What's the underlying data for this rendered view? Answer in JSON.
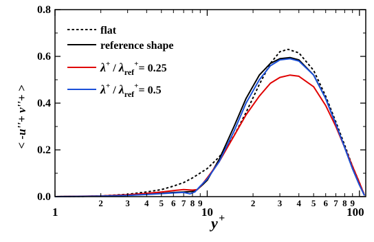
{
  "chart_data": {
    "type": "line",
    "x_scale": "log",
    "xlim": [
      1,
      110
    ],
    "ylim": [
      0,
      0.8
    ],
    "grid": false,
    "legend_position": "top-left",
    "xlabel": "y",
    "xlabel_sup": "+",
    "ylabel": "< -u''+ v''+ >",
    "major_x_ticks": [
      {
        "value": 1,
        "label": "1"
      },
      {
        "value": 10,
        "label": "10"
      },
      {
        "value": 100,
        "label": "100"
      }
    ],
    "minor_x_ticks": [
      {
        "value": 2,
        "label": "2"
      },
      {
        "value": 3,
        "label": "3"
      },
      {
        "value": 4,
        "label": "4"
      },
      {
        "value": 5,
        "label": "5"
      },
      {
        "value": 6,
        "label": "6"
      },
      {
        "value": 7,
        "label": "7"
      },
      {
        "value": 8,
        "label": "8"
      },
      {
        "value": 9,
        "label": "9"
      },
      {
        "value": 20,
        "label": "2"
      },
      {
        "value": 30,
        "label": "3"
      },
      {
        "value": 40,
        "label": "4"
      },
      {
        "value": 50,
        "label": "5"
      },
      {
        "value": 60,
        "label": "6"
      },
      {
        "value": 70,
        "label": "7"
      },
      {
        "value": 80,
        "label": "8"
      },
      {
        "value": 90,
        "label": "9"
      }
    ],
    "y_ticks": [
      {
        "value": 0.0,
        "label": "0.0"
      },
      {
        "value": 0.2,
        "label": "0.2"
      },
      {
        "value": 0.4,
        "label": "0.4"
      },
      {
        "value": 0.6,
        "label": "0.6"
      },
      {
        "value": 0.8,
        "label": "0.8"
      }
    ],
    "legend": [
      {
        "key": "flat",
        "label": "flat"
      },
      {
        "key": "ref",
        "label": "reference shape"
      },
      {
        "key": "l025",
        "sym": "λ",
        "sup": "+",
        "sep": " / ",
        "sym2": "λ",
        "sub2": "ref",
        "sup2": "+",
        "eq": "= 0.25"
      },
      {
        "key": "l05",
        "sym": "λ",
        "sup": "+",
        "sep": " / ",
        "sym2": "λ",
        "sub2": "ref",
        "sup2": "+",
        "eq": "= 0.5"
      }
    ],
    "series": [
      {
        "key": "flat",
        "color": "#000000",
        "dashed": true,
        "x": [
          1,
          1.5,
          2,
          3,
          4,
          5,
          6,
          7,
          8,
          10,
          12,
          15,
          18,
          22,
          26,
          30,
          34,
          40,
          50,
          60,
          70,
          80,
          90,
          100,
          108
        ],
        "y": [
          0.0,
          0.001,
          0.003,
          0.01,
          0.02,
          0.03,
          0.045,
          0.06,
          0.08,
          0.12,
          0.17,
          0.26,
          0.36,
          0.48,
          0.57,
          0.62,
          0.63,
          0.615,
          0.54,
          0.43,
          0.32,
          0.22,
          0.13,
          0.06,
          0.005
        ]
      },
      {
        "key": "ref",
        "color": "#000000",
        "dashed": false,
        "x": [
          1,
          2,
          3,
          4,
          5,
          6,
          7,
          8,
          8.6,
          9.3,
          10,
          12,
          15,
          18,
          22,
          26,
          30,
          35,
          40,
          50,
          60,
          70,
          80,
          90,
          100,
          108
        ],
        "y": [
          0.0,
          0.002,
          0.006,
          0.01,
          0.014,
          0.018,
          0.02,
          0.022,
          0.03,
          0.05,
          0.07,
          0.16,
          0.3,
          0.42,
          0.52,
          0.57,
          0.59,
          0.595,
          0.585,
          0.52,
          0.42,
          0.31,
          0.21,
          0.12,
          0.05,
          0.005
        ]
      },
      {
        "key": "l025",
        "color": "#e00000",
        "dashed": false,
        "x": [
          1,
          2,
          3,
          4,
          5,
          6,
          7,
          8,
          8.6,
          9.2,
          10,
          12,
          15,
          18,
          22,
          26,
          30,
          35,
          40,
          50,
          60,
          70,
          80,
          90,
          100,
          108
        ],
        "y": [
          0.0,
          0.003,
          0.008,
          0.014,
          0.02,
          0.026,
          0.03,
          0.028,
          0.03,
          0.05,
          0.08,
          0.15,
          0.26,
          0.35,
          0.43,
          0.485,
          0.51,
          0.52,
          0.515,
          0.47,
          0.39,
          0.3,
          0.21,
          0.13,
          0.06,
          0.005
        ]
      },
      {
        "key": "l05",
        "color": "#1a4fd8",
        "dashed": false,
        "x": [
          1,
          2,
          3,
          4,
          5,
          6,
          7,
          7.7,
          8.3,
          9,
          10,
          12,
          15,
          18,
          22,
          26,
          30,
          35,
          40,
          50,
          60,
          70,
          80,
          90,
          100,
          108
        ],
        "y": [
          0.0,
          0.002,
          0.005,
          0.009,
          0.013,
          0.016,
          0.018,
          0.012,
          0.02,
          0.045,
          0.075,
          0.15,
          0.28,
          0.4,
          0.5,
          0.56,
          0.585,
          0.59,
          0.58,
          0.52,
          0.42,
          0.31,
          0.21,
          0.12,
          0.05,
          0.005
        ]
      }
    ]
  }
}
